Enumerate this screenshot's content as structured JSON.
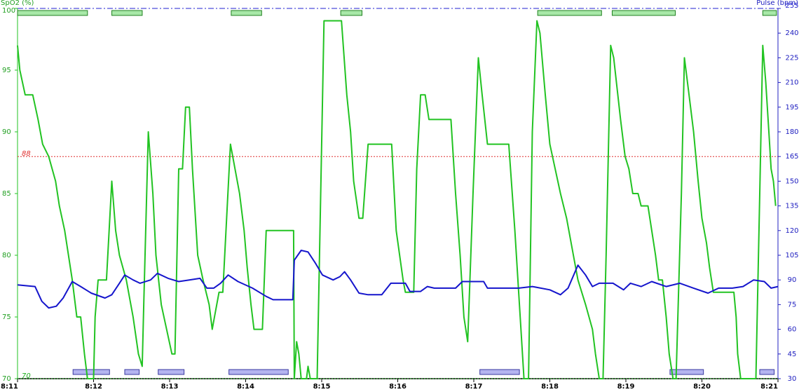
{
  "chart_data": {
    "type": "line",
    "ylabel": "SpO2 (%)",
    "y2label": "Pulse (bpm)",
    "xlim": [
      491,
      501
    ],
    "xticks": [
      {
        "value": 491,
        "label": "8:11"
      },
      {
        "value": 492,
        "label": "8:12"
      },
      {
        "value": 493,
        "label": "8:13"
      },
      {
        "value": 494,
        "label": "8:14"
      },
      {
        "value": 495,
        "label": "8:15"
      },
      {
        "value": 496,
        "label": "8:16"
      },
      {
        "value": 497,
        "label": "8:17"
      },
      {
        "value": 498,
        "label": "8:18"
      },
      {
        "value": 499,
        "label": "8:19"
      },
      {
        "value": 500,
        "label": "8:20"
      },
      {
        "value": 501,
        "label": "8:21"
      }
    ],
    "ylim": [
      70,
      100
    ],
    "yticks": [
      70,
      75,
      80,
      85,
      90,
      95,
      100
    ],
    "y2lim": [
      30,
      255
    ],
    "y2ticks": [
      30,
      45,
      60,
      75,
      90,
      105,
      120,
      135,
      150,
      165,
      180,
      195,
      210,
      225,
      240,
      255
    ],
    "hlines": [
      {
        "value": 88,
        "color": "#e03030"
      },
      {
        "value": 70,
        "color": "#20b020"
      }
    ],
    "y2lines": [
      {
        "value": 255,
        "color": "#2020d0"
      }
    ],
    "series": [
      {
        "color": "#22c322",
        "axis": "y",
        "x": [
          491.0,
          491.03,
          491.1,
          491.2,
          491.27,
          491.33,
          491.41,
          491.5,
          491.55,
          491.62,
          491.67,
          491.72,
          491.78,
          491.83,
          491.88,
          491.92,
          492.0,
          492.02,
          492.06,
          492.17,
          492.24,
          492.29,
          492.34,
          492.43,
          492.52,
          492.59,
          492.64,
          492.66,
          492.72,
          492.78,
          492.82,
          492.89,
          492.96,
          493.03,
          493.07,
          493.12,
          493.17,
          493.21,
          493.26,
          493.3,
          493.37,
          493.44,
          493.52,
          493.56,
          493.59,
          493.65,
          493.7,
          493.8,
          493.86,
          493.92,
          493.98,
          494.02,
          494.07,
          494.11,
          494.22,
          494.27,
          494.63,
          494.64,
          494.67,
          494.7,
          494.73,
          494.8,
          494.82,
          494.85,
          494.94,
          495.03,
          495.26,
          495.33,
          495.38,
          495.42,
          495.49,
          495.54,
          495.61,
          495.92,
          495.98,
          496.07,
          496.1,
          496.21,
          496.25,
          496.3,
          496.36,
          496.41,
          496.7,
          496.76,
          496.82,
          496.87,
          496.92,
          496.99,
          497.06,
          497.11,
          497.18,
          497.46,
          497.54,
          497.61,
          497.66,
          497.72,
          497.77,
          497.83,
          497.87,
          497.94,
          498.0,
          498.07,
          498.14,
          498.22,
          498.31,
          498.37,
          498.47,
          498.56,
          498.6,
          498.65,
          498.7,
          498.74,
          498.8,
          498.84,
          498.93,
          498.99,
          499.04,
          499.09,
          499.16,
          499.2,
          499.29,
          499.34,
          499.39,
          499.43,
          499.48,
          499.53,
          499.57,
          499.62,
          499.66,
          499.73,
          499.77,
          499.83,
          499.89,
          499.95,
          500.0,
          500.06,
          500.1,
          500.15,
          500.42,
          500.45,
          500.47,
          500.51,
          500.71,
          500.76,
          500.8,
          500.84,
          500.88,
          500.91,
          500.94,
          500.97
        ],
        "values": [
          97,
          95,
          93,
          93,
          91,
          89,
          88,
          86,
          84,
          82,
          80,
          78,
          75,
          75,
          72,
          70,
          70,
          75,
          78,
          78,
          86,
          82,
          80,
          78,
          75,
          72,
          71,
          76,
          90,
          85,
          80,
          76,
          74,
          72,
          72,
          87,
          87,
          92,
          92,
          87,
          80,
          78,
          76,
          74,
          75,
          77,
          77,
          89,
          87,
          85,
          82,
          79,
          76,
          74,
          74,
          82,
          82,
          70,
          73,
          72,
          70,
          70,
          71,
          70,
          70,
          99,
          99,
          93,
          90,
          86,
          83,
          83,
          89,
          89,
          82,
          78,
          77,
          77,
          87,
          93,
          93,
          91,
          91,
          85,
          80,
          75,
          73,
          85,
          96,
          93,
          89,
          89,
          82,
          75,
          70,
          70,
          90,
          99,
          98,
          93,
          89,
          87,
          85,
          83,
          80,
          78,
          76,
          74,
          72,
          70,
          70,
          80,
          97,
          96,
          91,
          88,
          87,
          85,
          85,
          84,
          84,
          82,
          80,
          78,
          78,
          75,
          72,
          70,
          70,
          85,
          96,
          93,
          90,
          86,
          83,
          81,
          79,
          77,
          77,
          75,
          72,
          70,
          70,
          85,
          97,
          94,
          90,
          87,
          86,
          84
        ]
      },
      {
        "color": "#1515cc",
        "axis": "y2",
        "x": [
          491.0,
          491.23,
          491.32,
          491.41,
          491.51,
          491.6,
          491.72,
          491.83,
          491.97,
          492.15,
          492.24,
          492.34,
          492.41,
          492.52,
          492.61,
          492.75,
          492.84,
          492.98,
          493.12,
          493.26,
          493.4,
          493.49,
          493.58,
          493.67,
          493.77,
          493.9,
          494.09,
          494.27,
          494.36,
          494.62,
          494.64,
          494.73,
          494.82,
          494.92,
          495.01,
          495.15,
          495.24,
          495.3,
          495.38,
          495.49,
          495.61,
          495.79,
          495.91,
          496.1,
          496.16,
          496.3,
          496.39,
          496.48,
          496.76,
          496.85,
          497.13,
          497.18,
          497.59,
          497.77,
          498.0,
          498.14,
          498.24,
          498.37,
          498.47,
          498.56,
          498.65,
          498.83,
          498.97,
          499.06,
          499.2,
          499.34,
          499.53,
          499.71,
          499.89,
          500.08,
          500.22,
          500.4,
          500.54,
          500.68,
          500.82,
          500.91,
          501.0
        ],
        "values": [
          87,
          86,
          77,
          73,
          74,
          79,
          89,
          86,
          82,
          79,
          81,
          88,
          93,
          90,
          88,
          90,
          94,
          91,
          89,
          90,
          91,
          85,
          85,
          88,
          93,
          89,
          85,
          80,
          78,
          78,
          102,
          108,
          107,
          100,
          93,
          90,
          92,
          95,
          90,
          82,
          81,
          81,
          88,
          88,
          83,
          83,
          86,
          85,
          85,
          89,
          89,
          85,
          85,
          86,
          84,
          81,
          85,
          99,
          93,
          86,
          88,
          88,
          84,
          88,
          86,
          89,
          86,
          88,
          85,
          82,
          85,
          85,
          86,
          90,
          89,
          85,
          86
        ]
      }
    ],
    "top_events": {
      "color": "#a8e8a8",
      "edge": "#208020",
      "spans": [
        [
          491.0,
          491.92
        ],
        [
          492.24,
          492.64
        ],
        [
          493.81,
          494.21
        ],
        [
          495.25,
          495.53
        ],
        [
          497.84,
          498.68
        ],
        [
          498.82,
          499.65
        ],
        [
          500.8,
          500.98
        ]
      ]
    },
    "bottom_events": {
      "color": "#b4b4f0",
      "edge": "#3a3aa0",
      "spans": [
        [
          491.73,
          492.21
        ],
        [
          492.41,
          492.6
        ],
        [
          492.85,
          493.19
        ],
        [
          493.78,
          494.56
        ],
        [
          497.08,
          497.6
        ],
        [
          499.58,
          500.02
        ],
        [
          500.76,
          500.95
        ]
      ]
    }
  }
}
